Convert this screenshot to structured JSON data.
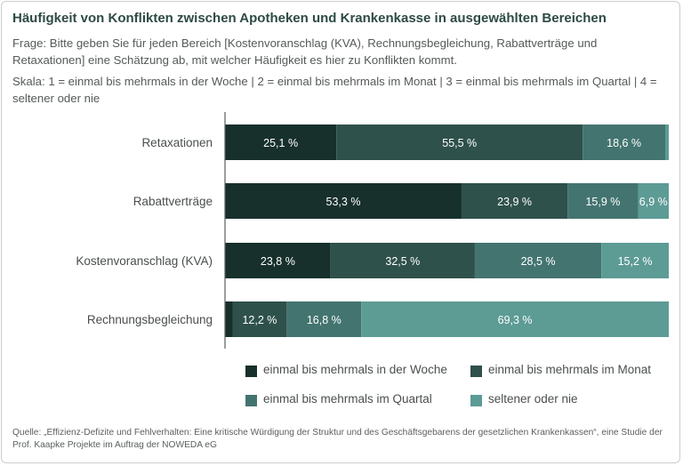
{
  "title": "Häufigkeit von Konflikten zwischen Apotheken und Krankenkasse in ausgewählten Bereichen",
  "question": "Frage: Bitte geben Sie für jeden Bereich [Kostenvoranschlag (KVA), Rechnungsbegleichung, Rabattverträge und Retaxationen] eine Schätzung ab, mit welcher Häufigkeit es hier zu Konflikten kommt.",
  "scale": "Skala: 1 = einmal bis mehrmals in der Woche | 2 = einmal bis mehrmals im Monat | 3 = einmal bis mehrmals im Quartal | 4 = seltener oder nie",
  "source": "Quelle: „Effizienz-Defizite und Fehlverhalten: Eine kritische Würdigung der Struktur und des Geschäftsgebarens der gesetzlichen Krankenkassen“, eine Studie der Prof. Kaapke Projekte im Auftrag der NOWEDA eG",
  "chart_data": {
    "type": "bar",
    "orientation": "horizontal",
    "stacked": true,
    "categories": [
      "Retaxationen",
      "Rabattverträge",
      "Kostenvoranschlag (KVA)",
      "Rechnungsbegleichung"
    ],
    "series": [
      {
        "name": "einmal bis mehrmals in der Woche",
        "color": "#17302b",
        "values": [
          25.1,
          53.3,
          23.8,
          1.7
        ],
        "labels": [
          "25,1 %",
          "53,3 %",
          "23,8 %",
          ""
        ]
      },
      {
        "name": "einmal bis mehrmals im Monat",
        "color": "#2f514b",
        "values": [
          55.5,
          23.9,
          32.5,
          12.2
        ],
        "labels": [
          "55,5 %",
          "23,9 %",
          "32,5 %",
          "12,2 %"
        ]
      },
      {
        "name": "einmal bis mehrmals im Quartal",
        "color": "#437470",
        "values": [
          18.6,
          15.9,
          28.5,
          16.8
        ],
        "labels": [
          "18,6 %",
          "15,9 %",
          "28,5 %",
          "16,8 %"
        ]
      },
      {
        "name": "seltener oder nie",
        "color": "#5d9b95",
        "values": [
          0.8,
          6.9,
          15.2,
          69.3
        ],
        "labels": [
          "",
          "6,9 %",
          "15,2 %",
          "69,3 %"
        ]
      }
    ],
    "xlim": [
      0,
      100
    ],
    "legend_position": "bottom"
  }
}
